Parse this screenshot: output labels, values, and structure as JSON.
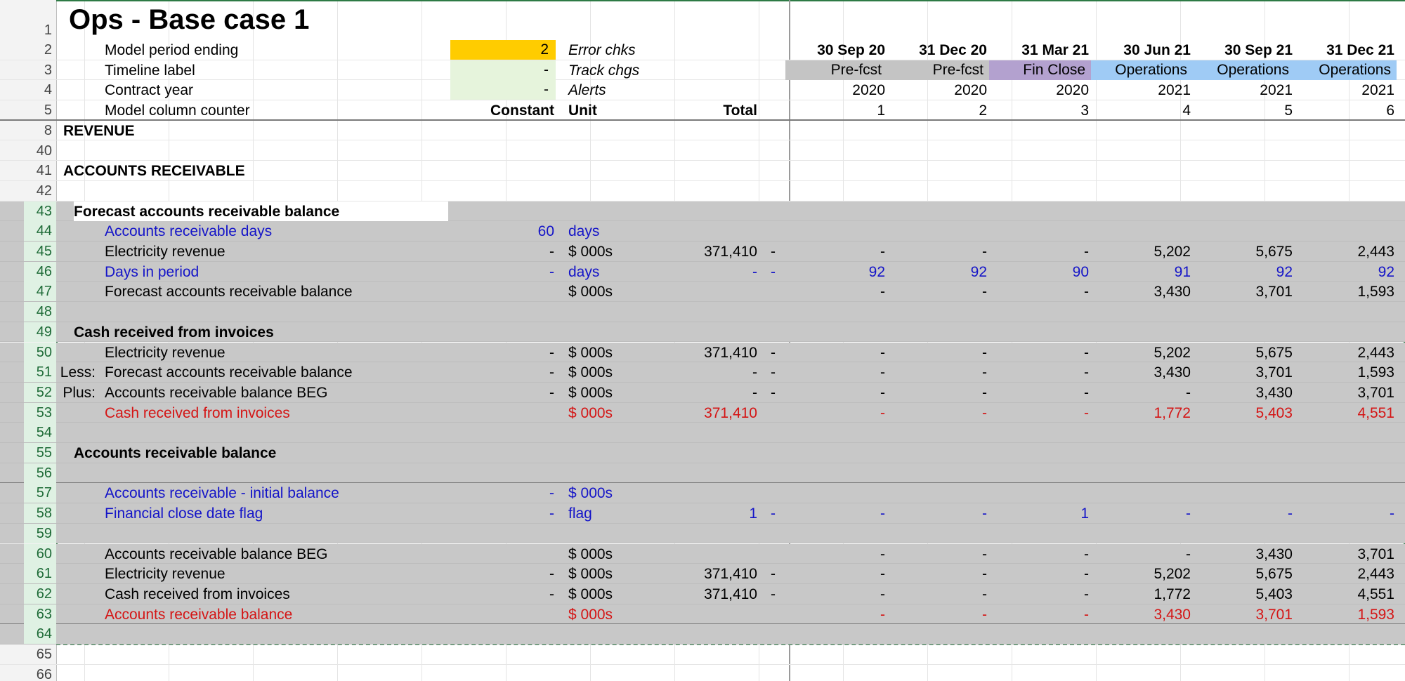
{
  "title": "Ops - Base case 1",
  "header_rows": [
    {
      "rn": "2",
      "label": "Model period ending",
      "value": "2",
      "flag": "Error chks"
    },
    {
      "rn": "3",
      "label": "Timeline label",
      "value": "-",
      "flag": "Track chgs"
    },
    {
      "rn": "4",
      "label": "Contract year",
      "value": "-",
      "flag": "Alerts"
    },
    {
      "rn": "5",
      "label": "Model column counter",
      "const": "Constant",
      "unit": "Unit",
      "total": "Total"
    }
  ],
  "periods": {
    "dates": [
      "30 Sep 20",
      "31 Dec 20",
      "31 Mar 21",
      "30 Jun 21",
      "30 Sep 21",
      "31 Dec 21"
    ],
    "labels": [
      "Pre-fcst",
      "Pre-fcst",
      "Fin Close",
      "Operations",
      "Operations",
      "Operations"
    ],
    "years": [
      "2020",
      "2020",
      "2020",
      "2021",
      "2021",
      "2021"
    ],
    "counters": [
      "1",
      "2",
      "3",
      "4",
      "5",
      "6"
    ]
  },
  "colors": {
    "yellow": "#ffcc00",
    "green_light": "#e6f4dc",
    "grey_tag": "#c4c4c4",
    "purple": "#b3a1cf",
    "blue_light": "#9fcbf5",
    "selection": "#2d7a45"
  },
  "rows": [
    {
      "rn": "8",
      "label": "REVENUE",
      "kind": "section"
    },
    {
      "rn": "40",
      "kind": "blank"
    },
    {
      "rn": "41",
      "label": "ACCOUNTS RECEIVABLE",
      "kind": "section"
    },
    {
      "rn": "42",
      "kind": "blank"
    },
    {
      "rn": "43",
      "label": "Forecast accounts receivable balance",
      "kind": "sub"
    },
    {
      "rn": "44",
      "label": "Accounts receivable days",
      "color": "blue",
      "const": "60",
      "unit": "days",
      "total": "",
      "dash": "",
      "vals": [
        "",
        "",
        "",
        "",
        "",
        ""
      ]
    },
    {
      "rn": "45",
      "label": "Electricity revenue",
      "const": "-",
      "unit": "$ 000s",
      "total": "371,410",
      "dash": "-",
      "vals": [
        "-",
        "-",
        "-",
        "5,202",
        "5,675",
        "2,443"
      ]
    },
    {
      "rn": "46",
      "label": "Days in period",
      "color": "blue",
      "const": "-",
      "unit": "days",
      "total": "-",
      "dash": "-",
      "vals": [
        "92",
        "92",
        "90",
        "91",
        "92",
        "92"
      ]
    },
    {
      "rn": "47",
      "label": "Forecast accounts receivable balance",
      "const": "",
      "unit": "$ 000s",
      "total": "",
      "dash": "",
      "vals": [
        "-",
        "-",
        "-",
        "3,430",
        "3,701",
        "1,593"
      ]
    },
    {
      "rn": "48",
      "kind": "blank"
    },
    {
      "rn": "49",
      "label": "Cash received from invoices",
      "kind": "sub"
    },
    {
      "rn": "50",
      "label": "Electricity revenue",
      "const": "-",
      "unit": "$ 000s",
      "total": "371,410",
      "dash": "-",
      "vals": [
        "-",
        "-",
        "-",
        "5,202",
        "5,675",
        "2,443"
      ]
    },
    {
      "rn": "51",
      "prefix": "Less:",
      "label": "Forecast accounts receivable balance",
      "const": "-",
      "unit": "$ 000s",
      "total": "-",
      "dash": "-",
      "vals": [
        "-",
        "-",
        "-",
        "3,430",
        "3,701",
        "1,593"
      ]
    },
    {
      "rn": "52",
      "prefix": "Plus:",
      "label": "Accounts receivable balance BEG",
      "const": "-",
      "unit": "$ 000s",
      "total": "-",
      "dash": "-",
      "vals": [
        "-",
        "-",
        "-",
        "-",
        "3,430",
        "3,701"
      ]
    },
    {
      "rn": "53",
      "label": "Cash received from invoices",
      "color": "red",
      "const": "",
      "unit": "$ 000s",
      "total": "371,410",
      "dash": "",
      "vals": [
        "-",
        "-",
        "-",
        "1,772",
        "5,403",
        "4,551"
      ]
    },
    {
      "rn": "54",
      "kind": "blank"
    },
    {
      "rn": "55",
      "label": "Accounts receivable balance",
      "kind": "sub"
    },
    {
      "rn": "56",
      "kind": "blank"
    },
    {
      "rn": "57",
      "label": "Accounts receivable - initial balance",
      "color": "blue",
      "const": "-",
      "unit": "$ 000s",
      "total": "",
      "dash": "",
      "vals": [
        "",
        "",
        "",
        "",
        "",
        ""
      ]
    },
    {
      "rn": "58",
      "label": "Financial close date flag",
      "color": "blue",
      "const": "-",
      "unit": "flag",
      "total": "1",
      "dash": "-",
      "vals": [
        "-",
        "-",
        "1",
        "-",
        "-",
        "-"
      ]
    },
    {
      "rn": "59",
      "kind": "blank"
    },
    {
      "rn": "60",
      "label": "Accounts receivable balance BEG",
      "const": "",
      "unit": "$ 000s",
      "total": "",
      "dash": "",
      "vals": [
        "-",
        "-",
        "-",
        "-",
        "3,430",
        "3,701"
      ]
    },
    {
      "rn": "61",
      "label": "Electricity revenue",
      "const": "-",
      "unit": "$ 000s",
      "total": "371,410",
      "dash": "-",
      "vals": [
        "-",
        "-",
        "-",
        "5,202",
        "5,675",
        "2,443"
      ]
    },
    {
      "rn": "62",
      "label": "Cash received from invoices",
      "const": "-",
      "unit": "$ 000s",
      "total": "371,410",
      "dash": "-",
      "vals": [
        "-",
        "-",
        "-",
        "1,772",
        "5,403",
        "4,551"
      ]
    },
    {
      "rn": "63",
      "label": "Accounts receivable balance",
      "color": "red",
      "const": "",
      "unit": "$ 000s",
      "total": "",
      "dash": "",
      "vals": [
        "-",
        "-",
        "-",
        "3,430",
        "3,701",
        "1,593"
      ]
    },
    {
      "rn": "64",
      "kind": "blank"
    },
    {
      "rn": "65",
      "kind": "blank"
    },
    {
      "rn": "66",
      "kind": "blank"
    }
  ]
}
